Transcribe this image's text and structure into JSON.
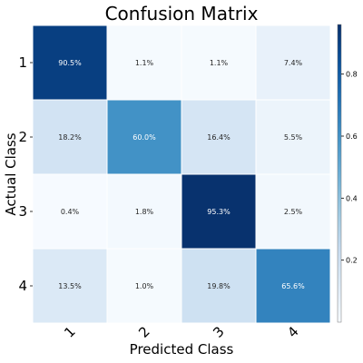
{
  "chart_data": {
    "type": "heatmap",
    "title": "Confusion Matrix",
    "xlabel": "Predicted Class",
    "ylabel": "Actual Class",
    "x_categories": [
      "1",
      "2",
      "3",
      "4"
    ],
    "y_categories": [
      "1",
      "2",
      "3",
      "4"
    ],
    "values": [
      [
        90.5,
        1.1,
        1.1,
        7.4
      ],
      [
        18.2,
        60.0,
        16.4,
        5.5
      ],
      [
        0.4,
        1.8,
        95.3,
        2.5
      ],
      [
        13.5,
        1.0,
        19.8,
        65.6
      ]
    ],
    "cell_labels": [
      [
        "90.5%",
        "1.1%",
        "1.1%",
        "7.4%"
      ],
      [
        "18.2%",
        "60.0%",
        "16.4%",
        "5.5%"
      ],
      [
        "0.4%",
        "1.8%",
        "95.3%",
        "2.5%"
      ],
      [
        "13.5%",
        "1.0%",
        "19.8%",
        "65.6%"
      ]
    ],
    "colormap": "Blues",
    "colorbar": {
      "range": [
        0.0,
        0.96
      ],
      "ticks": [
        0.2,
        0.4,
        0.6,
        0.8
      ],
      "tick_labels": [
        "0.2",
        "0.4",
        "0.6",
        "0.8"
      ]
    },
    "colors": {
      "low": "#f7fbff",
      "high": "#08306b"
    }
  }
}
